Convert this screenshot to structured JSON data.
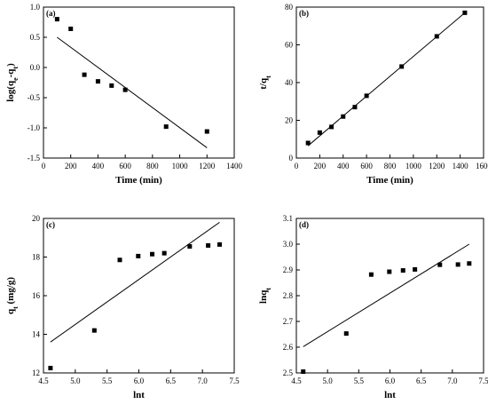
{
  "chart_data": [
    {
      "type": "scatter",
      "panel_label": "(a)",
      "xlabel": "Time (min)",
      "ylabel_main": "log(q",
      "ylabel_sub1": "e",
      "ylabel_mid": "-q",
      "ylabel_sub2": "t",
      "ylabel_end": ")",
      "xlim": [
        0,
        1400
      ],
      "ylim": [
        -1.5,
        1.0
      ],
      "xticks": [
        0,
        200,
        400,
        600,
        800,
        1000,
        1200,
        1400
      ],
      "yticks": [
        -1.5,
        -1.0,
        -0.5,
        0.0,
        0.5,
        1.0
      ],
      "xtick_labels": [
        "0",
        "200",
        "400",
        "600",
        "800",
        "1000",
        "1200",
        "1400"
      ],
      "ytick_labels": [
        "-1.5",
        "-1.0",
        "-0.5",
        "0.0",
        "0.5",
        "1.0"
      ],
      "points": {
        "x": [
          100,
          200,
          300,
          400,
          500,
          600,
          900,
          1200
        ],
        "y": [
          0.8,
          0.64,
          -0.12,
          -0.23,
          -0.3,
          -0.37,
          -0.98,
          -1.06
        ]
      },
      "fit_line": {
        "x": [
          100,
          1200
        ],
        "y": [
          0.5,
          -1.33
        ]
      }
    },
    {
      "type": "scatter",
      "panel_label": "(b)",
      "xlabel": "Time (min)",
      "ylabel_main": "t/q",
      "ylabel_sub1": "t",
      "xlim": [
        0,
        1600
      ],
      "ylim": [
        0,
        80
      ],
      "xticks": [
        0,
        200,
        400,
        600,
        800,
        1000,
        1200,
        1400,
        1600
      ],
      "yticks": [
        0,
        20,
        40,
        60,
        80
      ],
      "xtick_labels": [
        "0",
        "200",
        "400",
        "600",
        "800",
        "1000",
        "1200",
        "1400",
        "1600"
      ],
      "ytick_labels": [
        "0",
        "20",
        "40",
        "60",
        "80"
      ],
      "points": {
        "x": [
          100,
          200,
          300,
          400,
          500,
          600,
          900,
          1200,
          1440
        ],
        "y": [
          8,
          13.5,
          16.5,
          22,
          27,
          33,
          48.5,
          64.5,
          77
        ]
      },
      "fit_line": {
        "x": [
          100,
          1440
        ],
        "y": [
          6.5,
          77
        ]
      }
    },
    {
      "type": "scatter",
      "panel_label": "(c)",
      "xlabel": "lnt",
      "ylabel_main": "q",
      "ylabel_sub1": "t",
      "ylabel_end": " (mg/g)",
      "xlim": [
        4.5,
        7.5
      ],
      "ylim": [
        12,
        20
      ],
      "xticks": [
        4.5,
        5.0,
        5.5,
        6.0,
        6.5,
        7.0,
        7.5
      ],
      "yticks": [
        12,
        14,
        16,
        18,
        20
      ],
      "xtick_labels": [
        "4.5",
        "5.0",
        "5.5",
        "6.0",
        "6.5",
        "7.0",
        "7.5"
      ],
      "ytick_labels": [
        "12",
        "14",
        "16",
        "18",
        "20"
      ],
      "points": {
        "x": [
          4.61,
          5.3,
          5.7,
          5.99,
          6.21,
          6.4,
          6.8,
          7.09,
          7.27
        ],
        "y": [
          12.25,
          14.2,
          17.85,
          18.05,
          18.15,
          18.2,
          18.55,
          18.6,
          18.65
        ]
      },
      "fit_line": {
        "x": [
          4.61,
          7.27
        ],
        "y": [
          13.6,
          19.8
        ]
      }
    },
    {
      "type": "scatter",
      "panel_label": "(d)",
      "xlabel": "lnt",
      "ylabel_main": "lnq",
      "ylabel_sub1": "t",
      "xlim": [
        4.5,
        7.5
      ],
      "ylim": [
        2.5,
        3.1
      ],
      "xticks": [
        4.5,
        5.0,
        5.5,
        6.0,
        6.5,
        7.0,
        7.5
      ],
      "yticks": [
        2.5,
        2.6,
        2.7,
        2.8,
        2.9,
        3.0,
        3.1
      ],
      "xtick_labels": [
        "4.5",
        "5.0",
        "5.5",
        "6.0",
        "6.5",
        "7.0",
        "7.5"
      ],
      "ytick_labels": [
        "2.5",
        "2.6",
        "2.7",
        "2.8",
        "2.9",
        "3.0",
        "3.1"
      ],
      "points": {
        "x": [
          4.61,
          5.3,
          5.7,
          5.99,
          6.21,
          6.4,
          6.8,
          7.09,
          7.27
        ],
        "y": [
          2.505,
          2.653,
          2.882,
          2.893,
          2.898,
          2.902,
          2.92,
          2.921,
          2.925
        ]
      },
      "fit_line": {
        "x": [
          4.61,
          7.27
        ],
        "y": [
          2.602,
          3.0
        ]
      }
    }
  ]
}
